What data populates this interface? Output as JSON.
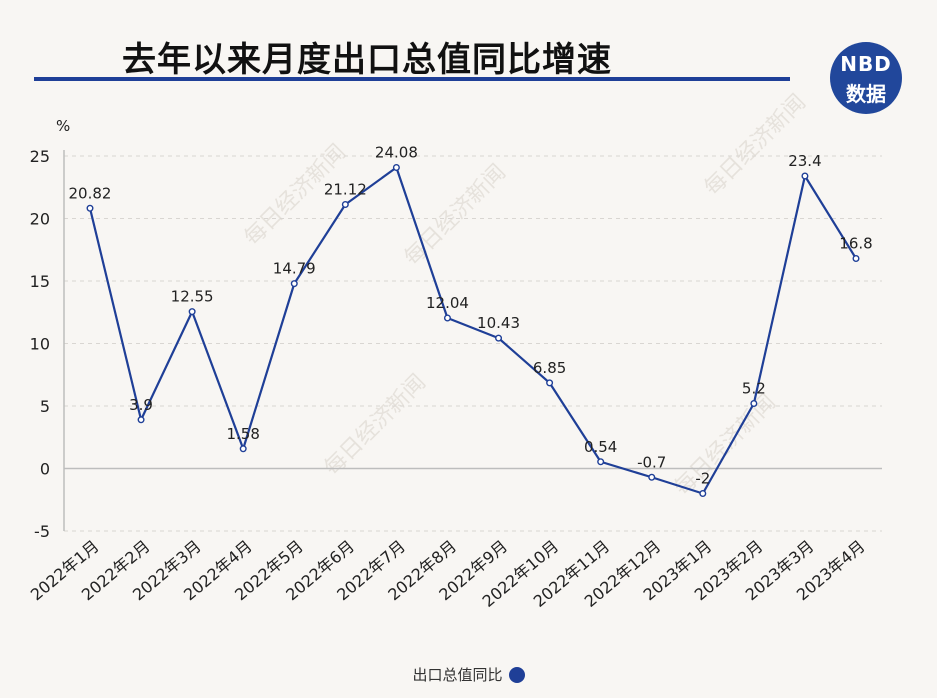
{
  "header": {
    "title": "去年以来月度出口总值同比增速",
    "logo_line1": "NBD",
    "logo_line2": "数据"
  },
  "chart_data": {
    "type": "line",
    "ylabel": "%",
    "ylim": [
      -5,
      25
    ],
    "yticks": [
      25,
      20,
      15,
      10,
      5,
      0,
      -5
    ],
    "grid": true,
    "categories": [
      "2022年1月",
      "2022年2月",
      "2022年3月",
      "2022年4月",
      "2022年5月",
      "2022年6月",
      "2022年7月",
      "2022年8月",
      "2022年9月",
      "2022年10月",
      "2022年11月",
      "2022年12月",
      "2023年1月",
      "2023年2月",
      "2023年3月",
      "2023年4月"
    ],
    "series": [
      {
        "name": "出口总值同比",
        "color": "#1f3f97",
        "values": [
          20.82,
          3.9,
          12.55,
          1.58,
          14.79,
          21.12,
          24.08,
          12.04,
          10.43,
          6.85,
          0.54,
          -0.7,
          -2,
          5.2,
          23.4,
          16.8
        ],
        "labels": [
          "20.82",
          "3.9",
          "12.55",
          "1.58",
          "14.79",
          "21.12",
          "24.08",
          "12.04",
          "10.43",
          "6.85",
          "0.54",
          "-0.7",
          "-2",
          "5.2",
          "23.4",
          "16.8"
        ]
      }
    ],
    "legend": "bottom-center"
  },
  "watermark": "每日经济新闻"
}
